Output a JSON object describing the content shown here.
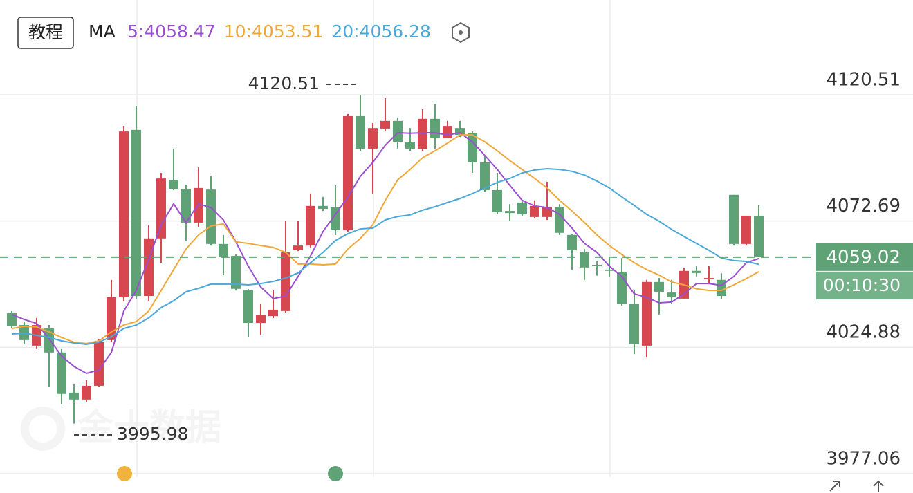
{
  "chart_data": {
    "type": "candlestick",
    "button": "教程",
    "ma_label": "MA",
    "watermark": "金十数据",
    "ylim": [
      3969.7,
      4156.38
    ],
    "yticks": [
      4120.51,
      4072.69,
      4024.88,
      3977.06
    ],
    "grid": true,
    "up_color": "#d6474f",
    "down_color": "#5ea276",
    "current_price": 4059.02,
    "countdown": "00:10:30",
    "max_label": 4120.51,
    "min_label": 3995.98,
    "ohlc": [
      [
        4037.8,
        4038.6,
        4032.0,
        4032.8
      ],
      [
        4033.3,
        4034.6,
        4026.0,
        4027.6
      ],
      [
        4025.5,
        4036.0,
        4024.2,
        4033.3
      ],
      [
        4032.0,
        4033.3,
        4009.8,
        4022.9
      ],
      [
        4022.9,
        4024.2,
        4003.2,
        4007.2
      ],
      [
        4007.7,
        4011.1,
        3995.98,
        4005.1
      ],
      [
        4005.1,
        4012.4,
        4004.0,
        4010.3
      ],
      [
        4010.3,
        4028.1,
        4009.8,
        4026.8
      ],
      [
        4027.6,
        4050.4,
        4026.8,
        4043.8
      ],
      [
        4043.8,
        4108.7,
        4042.5,
        4106.6
      ],
      [
        4107.2,
        4116.3,
        4043.3,
        4044.3
      ],
      [
        4044.3,
        4071.3,
        4042.5,
        4066.1
      ],
      [
        4066.1,
        4090.9,
        4056.9,
        4088.8
      ],
      [
        4088.3,
        4100.1,
        4084.4,
        4084.9
      ],
      [
        4084.9,
        4086.2,
        4065.3,
        4072.1
      ],
      [
        4072.1,
        4093.0,
        4070.5,
        4085.2
      ],
      [
        4084.6,
        4089.6,
        4063.4,
        4064.0
      ],
      [
        4064.0,
        4067.4,
        4052.2,
        4059.0
      ],
      [
        4059.5,
        4060.0,
        4046.4,
        4047.0
      ],
      [
        4046.4,
        4046.9,
        4028.6,
        4034.1
      ],
      [
        4034.1,
        4041.2,
        4029.4,
        4037.0
      ],
      [
        4036.7,
        4046.4,
        4035.9,
        4039.1
      ],
      [
        4038.6,
        4072.6,
        4038.0,
        4060.8
      ],
      [
        4061.6,
        4072.6,
        4061.3,
        4063.4
      ],
      [
        4063.4,
        4083.1,
        4062.7,
        4078.4
      ],
      [
        4078.4,
        4081.8,
        4076.5,
        4077.3
      ],
      [
        4077.9,
        4086.2,
        4067.4,
        4069.2
      ],
      [
        4069.2,
        4113.2,
        4068.7,
        4112.4
      ],
      [
        4112.4,
        4120.51,
        4099.3,
        4100.1
      ],
      [
        4100.1,
        4109.8,
        4083.1,
        4107.9
      ],
      [
        4107.7,
        4119.2,
        4106.6,
        4110.6
      ],
      [
        4110.6,
        4111.9,
        4100.1,
        4102.7
      ],
      [
        4102.7,
        4107.9,
        4099.3,
        4100.1
      ],
      [
        4100.1,
        4115.0,
        4099.3,
        4111.4
      ],
      [
        4111.4,
        4117.1,
        4100.1,
        4104.0
      ],
      [
        4104.0,
        4110.6,
        4104.0,
        4108.7
      ],
      [
        4107.9,
        4110.6,
        4104.5,
        4105.3
      ],
      [
        4106.1,
        4106.6,
        4090.9,
        4094.9
      ],
      [
        4094.9,
        4097.5,
        4083.6,
        4084.4
      ],
      [
        4084.4,
        4090.9,
        4075.2,
        4076.0
      ],
      [
        4076.5,
        4079.1,
        4072.6,
        4075.7
      ],
      [
        4079.7,
        4080.5,
        4074.7,
        4075.2
      ],
      [
        4074.2,
        4080.5,
        4073.6,
        4078.4
      ],
      [
        4074.2,
        4087.5,
        4073.1,
        4077.9
      ],
      [
        4077.9,
        4079.1,
        4067.4,
        4068.2
      ],
      [
        4067.4,
        4067.9,
        4054.3,
        4061.6
      ],
      [
        4060.8,
        4062.1,
        4050.4,
        4055.1
      ],
      [
        4056.1,
        4057.4,
        4052.0,
        4055.6
      ],
      [
        4054.3,
        4059.0,
        4051.7,
        4053.8
      ],
      [
        4053.5,
        4058.7,
        4040.7,
        4041.2
      ],
      [
        4041.2,
        4046.4,
        4022.3,
        4026.0
      ],
      [
        4025.5,
        4050.4,
        4021.0,
        4049.6
      ],
      [
        4049.6,
        4051.1,
        4037.3,
        4045.9
      ],
      [
        4045.6,
        4050.4,
        4041.2,
        4043.8
      ],
      [
        4043.3,
        4054.8,
        4043.3,
        4053.8
      ],
      [
        4053.8,
        4055.6,
        4051.7,
        4053.0
      ],
      [
        4050.6,
        4055.6,
        4049.0,
        4051.1
      ],
      [
        4050.4,
        4052.9,
        4043.3,
        4044.3
      ],
      [
        4082.6,
        4082.6,
        4063.4,
        4064.0
      ],
      [
        4064.0,
        4074.7,
        4063.4,
        4074.7
      ],
      [
        4074.7,
        4078.6,
        4059.02,
        4059.02
      ]
    ],
    "ma": [
      {
        "name": "5:4058.47",
        "color": "#9b4fd0",
        "values": [
          4037.3,
          4035.4,
          4033.9,
          4028.1,
          4021.6,
          4017.6,
          4015.0,
          4016.3,
          4022.9,
          4038.6,
          4046.4,
          4058.2,
          4071.3,
          4079.2,
          4072.1,
          4079.2,
          4077.8,
          4073.1,
          4064.8,
          4055.6,
          4047.7,
          4043.3,
          4044.3,
          4051.7,
          4059.5,
          4068.7,
          4075.2,
          4081.8,
          4089.6,
          4094.9,
          4101.4,
          4106.1,
          4105.9,
          4106.1,
          4106.1,
          4105.3,
          4106.1,
          4102.7,
          4097.5,
          4092.2,
          4086.2,
          4080.5,
          4078.4,
          4077.8,
          4075.2,
          4070.0,
          4064.2,
          4060.8,
          4055.6,
          4051.7,
          4045.1,
          4043.8,
          4041.7,
          4042.0,
          4045.1,
          4049.0,
          4049.0,
          4048.3,
          4051.7,
          4056.9,
          4058.47
        ]
      },
      {
        "name": "10:4053.51",
        "color": "#f0a73a",
        "values": [
          4032.0,
          4032.8,
          4032.6,
          4030.7,
          4028.6,
          4026.8,
          4026.3,
          4027.3,
          4030.7,
          4033.3,
          4034.6,
          4038.6,
          4046.4,
          4054.3,
          4062.1,
          4067.4,
          4070.8,
          4071.6,
          4064.8,
          4064.2,
          4063.4,
          4062.7,
          4060.8,
          4056.4,
          4056.4,
          4056.1,
          4056.4,
          4062.1,
          4066.1,
          4071.3,
          4080.5,
          4088.3,
          4092.2,
          4096.7,
          4099.3,
          4102.2,
          4105.3,
          4105.3,
          4102.7,
          4099.3,
          4095.6,
          4092.2,
          4088.8,
          4085.2,
          4080.5,
          4076.5,
          4072.1,
          4067.4,
          4063.4,
          4060.0,
          4056.9,
          4054.3,
          4052.2,
          4049.6,
          4048.5,
          4047.0,
          4046.4,
          4046.4,
          4048.5,
          4050.9,
          4053.51
        ]
      },
      {
        "name": "20:4056.28",
        "color": "#4aa8d8",
        "values": [
          4029.9,
          4030.2,
          4029.4,
          4028.6,
          4027.3,
          4026.5,
          4026.0,
          4026.8,
          4028.9,
          4032.0,
          4033.3,
          4036.0,
          4039.9,
          4042.5,
          4045.9,
          4047.2,
          4048.8,
          4048.8,
          4048.8,
          4048.5,
          4049.0,
          4049.8,
          4051.1,
          4053.0,
          4056.9,
          4060.8,
          4065.3,
          4067.9,
          4069.7,
          4070.0,
          4073.1,
          4074.4,
          4075.0,
          4076.8,
          4078.1,
          4079.7,
          4081.2,
          4083.1,
          4085.2,
          4087.3,
          4088.8,
          4090.9,
          4092.0,
          4092.5,
          4092.2,
          4091.5,
          4090.1,
          4087.8,
          4085.2,
          4081.8,
          4078.6,
          4075.2,
          4072.6,
          4069.5,
          4066.8,
          4064.2,
          4061.6,
          4058.7,
          4057.7,
          4057.4,
          4056.28
        ]
      }
    ]
  }
}
